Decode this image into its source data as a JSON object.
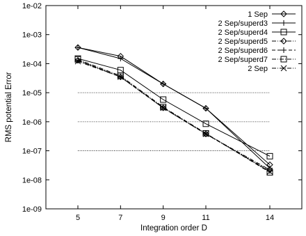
{
  "chart_data": {
    "type": "line",
    "title": "",
    "xlabel": "Integration order D",
    "ylabel": "RMS potential Error",
    "xscale": "linear",
    "yscale": "log",
    "xlim": [
      3.5,
      15.5
    ],
    "ylim": [
      1e-09,
      0.01
    ],
    "xticks": [
      5,
      7,
      9,
      11,
      14
    ],
    "xtick_labels": [
      "5",
      "7",
      "9",
      "11",
      "14"
    ],
    "yticks": [
      1e-09,
      1e-08,
      1e-07,
      1e-06,
      1e-05,
      0.0001,
      0.001,
      0.01
    ],
    "ytick_labels": [
      "1e-09",
      "1e-08",
      "1e-07",
      "1e-06",
      "1e-05",
      "1e-04",
      "1e-03",
      "1e-02"
    ],
    "grid": false,
    "legend_position": "top-right",
    "reference_lines": [
      {
        "y": 1e-05,
        "x": [
          5,
          14
        ],
        "style": "dotted"
      },
      {
        "y": 1e-06,
        "x": [
          5,
          14
        ],
        "style": "dotted"
      },
      {
        "y": 1e-07,
        "x": [
          5,
          14
        ],
        "style": "dotted"
      }
    ],
    "x": [
      5,
      7,
      9,
      11,
      14
    ],
    "series": [
      {
        "name": "1 Sep",
        "values": [
          0.00036,
          0.00018,
          2e-05,
          2.9e-06,
          3.3e-08
        ],
        "marker": "diamond",
        "dash": "solid"
      },
      {
        "name": "2 Sep/superd3",
        "values": [
          0.00036,
          0.00015,
          2e-05,
          2.9e-06,
          2.5e-08
        ],
        "marker": "plus",
        "dash": "solid"
      },
      {
        "name": "2 Sep/superd4",
        "values": [
          0.00015,
          6e-05,
          5.8e-06,
          8.5e-07,
          6.5e-08
        ],
        "marker": "square",
        "dash": "solid"
      },
      {
        "name": "2 Sep/superd5",
        "values": [
          0.00013,
          3.5e-05,
          3e-06,
          3.8e-07,
          2.2e-08
        ],
        "marker": "diamond",
        "dash": "dashdot"
      },
      {
        "name": "2 Sep/superd6",
        "values": [
          0.00013,
          3.5e-05,
          3e-06,
          3.8e-07,
          2e-08
        ],
        "marker": "plus",
        "dash": "dash"
      },
      {
        "name": "2 Sep/superd7",
        "values": [
          0.00014,
          3.8e-05,
          3.2e-06,
          4e-07,
          1.8e-08
        ],
        "marker": "square",
        "dash": "dashdot"
      },
      {
        "name": "2 Sep",
        "values": [
          0.00012,
          3.5e-05,
          3e-06,
          3.8e-07,
          1.9e-08
        ],
        "marker": "x",
        "dash": "dashdot"
      }
    ]
  }
}
